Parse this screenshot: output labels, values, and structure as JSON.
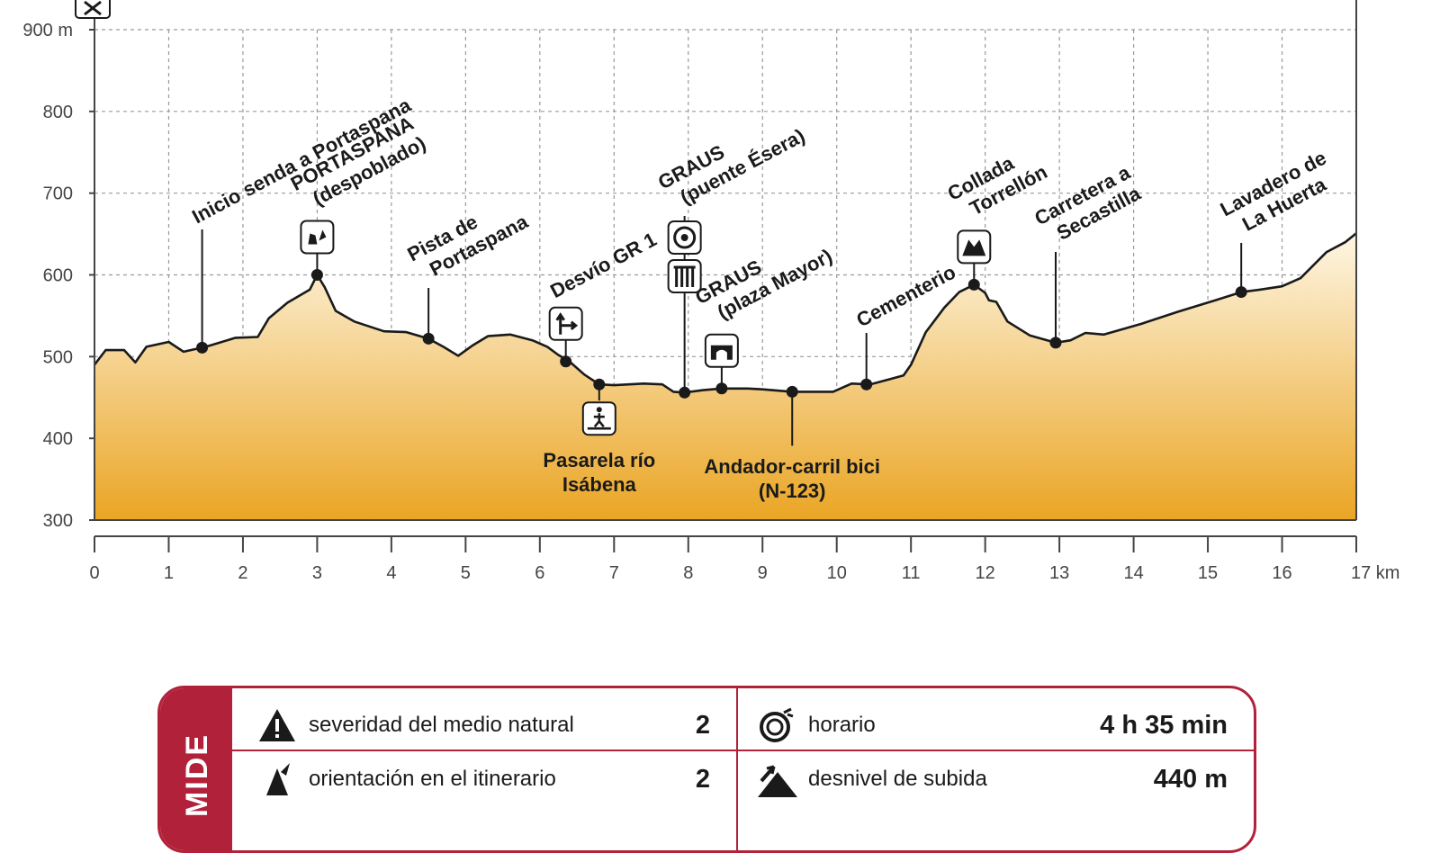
{
  "chart_data": {
    "type": "area",
    "x_unit": "km",
    "y_unit": "m",
    "xlim": [
      0,
      17
    ],
    "ylim": [
      300,
      900
    ],
    "x_ticks": [
      {
        "v": 0,
        "t": "0"
      },
      {
        "v": 1,
        "t": "1"
      },
      {
        "v": 2,
        "t": "2"
      },
      {
        "v": 3,
        "t": "3"
      },
      {
        "v": 4,
        "t": "4"
      },
      {
        "v": 5,
        "t": "5"
      },
      {
        "v": 6,
        "t": "6"
      },
      {
        "v": 7,
        "t": "7"
      },
      {
        "v": 8,
        "t": "8"
      },
      {
        "v": 9,
        "t": "9"
      },
      {
        "v": 10,
        "t": "10"
      },
      {
        "v": 11,
        "t": "11"
      },
      {
        "v": 12,
        "t": "12"
      },
      {
        "v": 13,
        "t": "13"
      },
      {
        "v": 14,
        "t": "14"
      },
      {
        "v": 15,
        "t": "15"
      },
      {
        "v": 16,
        "t": "16"
      },
      {
        "v": 17,
        "t": "17 km"
      }
    ],
    "y_ticks": [
      {
        "v": 300,
        "t": "300"
      },
      {
        "v": 400,
        "t": "400"
      },
      {
        "v": 500,
        "t": "500"
      },
      {
        "v": 600,
        "t": "600"
      },
      {
        "v": 700,
        "t": "700"
      },
      {
        "v": 800,
        "t": "800"
      },
      {
        "v": 900,
        "t": "900 m"
      }
    ],
    "grid": true,
    "colors": {
      "fill_top": "#fef6e4",
      "fill_bottom": "#eaa524",
      "line": "#1a1a1a",
      "grid": "#9a9a9a"
    },
    "profile": [
      [
        0,
        490
      ],
      [
        0.15,
        508
      ],
      [
        0.4,
        508
      ],
      [
        0.55,
        493
      ],
      [
        0.7,
        512
      ],
      [
        1.0,
        518
      ],
      [
        1.2,
        506
      ],
      [
        1.5,
        512
      ],
      [
        1.9,
        523
      ],
      [
        2.2,
        524
      ],
      [
        2.35,
        547
      ],
      [
        2.6,
        566
      ],
      [
        2.9,
        582
      ],
      [
        3.0,
        600
      ],
      [
        3.1,
        585
      ],
      [
        3.25,
        556
      ],
      [
        3.5,
        543
      ],
      [
        3.9,
        531
      ],
      [
        4.2,
        530
      ],
      [
        4.5,
        522
      ],
      [
        4.7,
        512
      ],
      [
        4.9,
        501
      ],
      [
        5.1,
        514
      ],
      [
        5.3,
        525
      ],
      [
        5.6,
        527
      ],
      [
        5.9,
        520
      ],
      [
        6.1,
        512
      ],
      [
        6.25,
        502
      ],
      [
        6.4,
        494
      ],
      [
        6.6,
        478
      ],
      [
        6.8,
        466
      ],
      [
        7.0,
        465
      ],
      [
        7.4,
        467
      ],
      [
        7.65,
        466
      ],
      [
        7.8,
        457
      ],
      [
        7.95,
        456
      ],
      [
        8.2,
        459
      ],
      [
        8.45,
        461
      ],
      [
        8.8,
        461
      ],
      [
        9.0,
        460
      ],
      [
        9.4,
        457
      ],
      [
        9.8,
        457
      ],
      [
        9.95,
        457
      ],
      [
        10.2,
        467
      ],
      [
        10.45,
        466
      ],
      [
        10.7,
        472
      ],
      [
        10.9,
        477
      ],
      [
        11.0,
        490
      ],
      [
        11.2,
        530
      ],
      [
        11.45,
        560
      ],
      [
        11.65,
        579
      ],
      [
        11.85,
        588
      ],
      [
        12.0,
        578
      ],
      [
        12.05,
        569
      ],
      [
        12.15,
        567
      ],
      [
        12.3,
        543
      ],
      [
        12.6,
        526
      ],
      [
        12.95,
        517
      ],
      [
        13.15,
        520
      ],
      [
        13.35,
        529
      ],
      [
        13.6,
        527
      ],
      [
        14.1,
        540
      ],
      [
        14.6,
        555
      ],
      [
        15.1,
        569
      ],
      [
        15.45,
        579
      ],
      [
        15.7,
        582
      ],
      [
        16.0,
        586
      ],
      [
        16.25,
        596
      ],
      [
        16.6,
        628
      ],
      [
        16.85,
        640
      ],
      [
        17.0,
        651
      ]
    ],
    "waypoints": [
      {
        "x": 1.45,
        "y": 511,
        "label": [
          "Inicio senda a Portaspana"
        ],
        "tip_y": 762,
        "lx": "l",
        "rot": -28,
        "icon": null
      },
      {
        "x": 3.0,
        "y": 600,
        "label": [
          "PORTASPANA",
          "(despoblado)"
        ],
        "tip_y": 762,
        "lx": "c",
        "rot": -28,
        "icon": "ruins-icon"
      },
      {
        "x": 4.5,
        "y": 522,
        "label": [
          "Pista de",
          "Portaspana"
        ],
        "tip_y": 640,
        "lx": "l",
        "rot": -28,
        "icon": null
      },
      {
        "x": 6.35,
        "y": 494,
        "label": [
          "Desvío GR 1"
        ],
        "tip_y": 588,
        "lx": "l",
        "rot": -28,
        "icon": "junction-icon"
      },
      {
        "x": 7.95,
        "y": 456,
        "label": [
          "GRAUS",
          "(puente Ésera)"
        ],
        "tip_y": 730,
        "lx": "c",
        "rot": -28,
        "icon": "bridge-pillars-icon"
      },
      {
        "x": 8.45,
        "y": 461,
        "label": [
          "GRAUS",
          "(plaza Mayor)"
        ],
        "tip_y": 555,
        "lx": "l",
        "rot": -28,
        "icon": "plaza-icon"
      },
      {
        "x": 10.4,
        "y": 466,
        "label": [
          "Cementerio"
        ],
        "tip_y": 530,
        "lx": "l",
        "rot": -28,
        "icon": null
      },
      {
        "x": 11.85,
        "y": 588,
        "label": [
          "Collada",
          "Torrellón"
        ],
        "tip_y": 660,
        "lx": "c",
        "rot": -28,
        "icon": "mountain-icon"
      },
      {
        "x": 12.95,
        "y": 517,
        "label": [
          "Carretera a",
          "Secastilla"
        ],
        "tip_y": 640,
        "lx": "l",
        "rot": -28,
        "icon": null
      },
      {
        "x": 15.45,
        "y": 579,
        "label": [
          "Lavadero de",
          "La Huerta"
        ],
        "tip_y": 640,
        "lx": "l",
        "rot": -28,
        "icon": null
      }
    ],
    "below_points": [
      {
        "x": 6.8,
        "y": 466,
        "label": [
          "Pasarela río",
          "Isábena"
        ],
        "icon": "footbridge-icon"
      },
      {
        "x": 9.4,
        "y": 457,
        "label": [
          "Andador-carril bici",
          "(N-123)"
        ],
        "icon": null
      }
    ]
  },
  "info_panel": {
    "side_text": "MIDE",
    "rows": [
      {
        "left": {
          "icon": "warning-icon",
          "label": "severidad del medio natural",
          "value": "2"
        },
        "right": {
          "icon": "timer-icon",
          "label": "horario",
          "value": "4 h 35 min"
        }
      },
      {
        "left": {
          "icon": "compass-icon",
          "label": "orientación en el itinerario",
          "value": "2"
        },
        "right": {
          "icon": "ascent-icon",
          "label": "desnivel de subida",
          "value": "440 m"
        }
      }
    ]
  }
}
